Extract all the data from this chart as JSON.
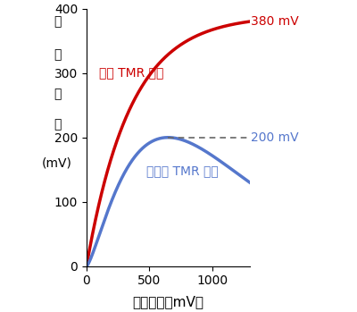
{
  "xlabel": "印可電圧（mV）",
  "ylabel_chars": [
    "出",
    "力",
    "電",
    "圧",
    "(mV)"
  ],
  "xlim": [
    0,
    1300
  ],
  "ylim": [
    0,
    400
  ],
  "xticks": [
    0,
    500,
    1000
  ],
  "yticks": [
    0,
    100,
    200,
    300,
    400
  ],
  "red_label": "新型 TMR 素子",
  "blue_label": "従来型 TMR 素子",
  "red_annotation": "380 mV",
  "blue_annotation": "200 mV",
  "red_color": "#cc0000",
  "blue_color": "#5577cc",
  "dashed_color": "#666666",
  "background_color": "#ffffff",
  "red_peak_x": 1300,
  "red_peak_y": 380,
  "blue_peak_x": 650,
  "blue_peak_y": 200,
  "figsize": [
    4.0,
    3.49
  ],
  "dpi": 100
}
